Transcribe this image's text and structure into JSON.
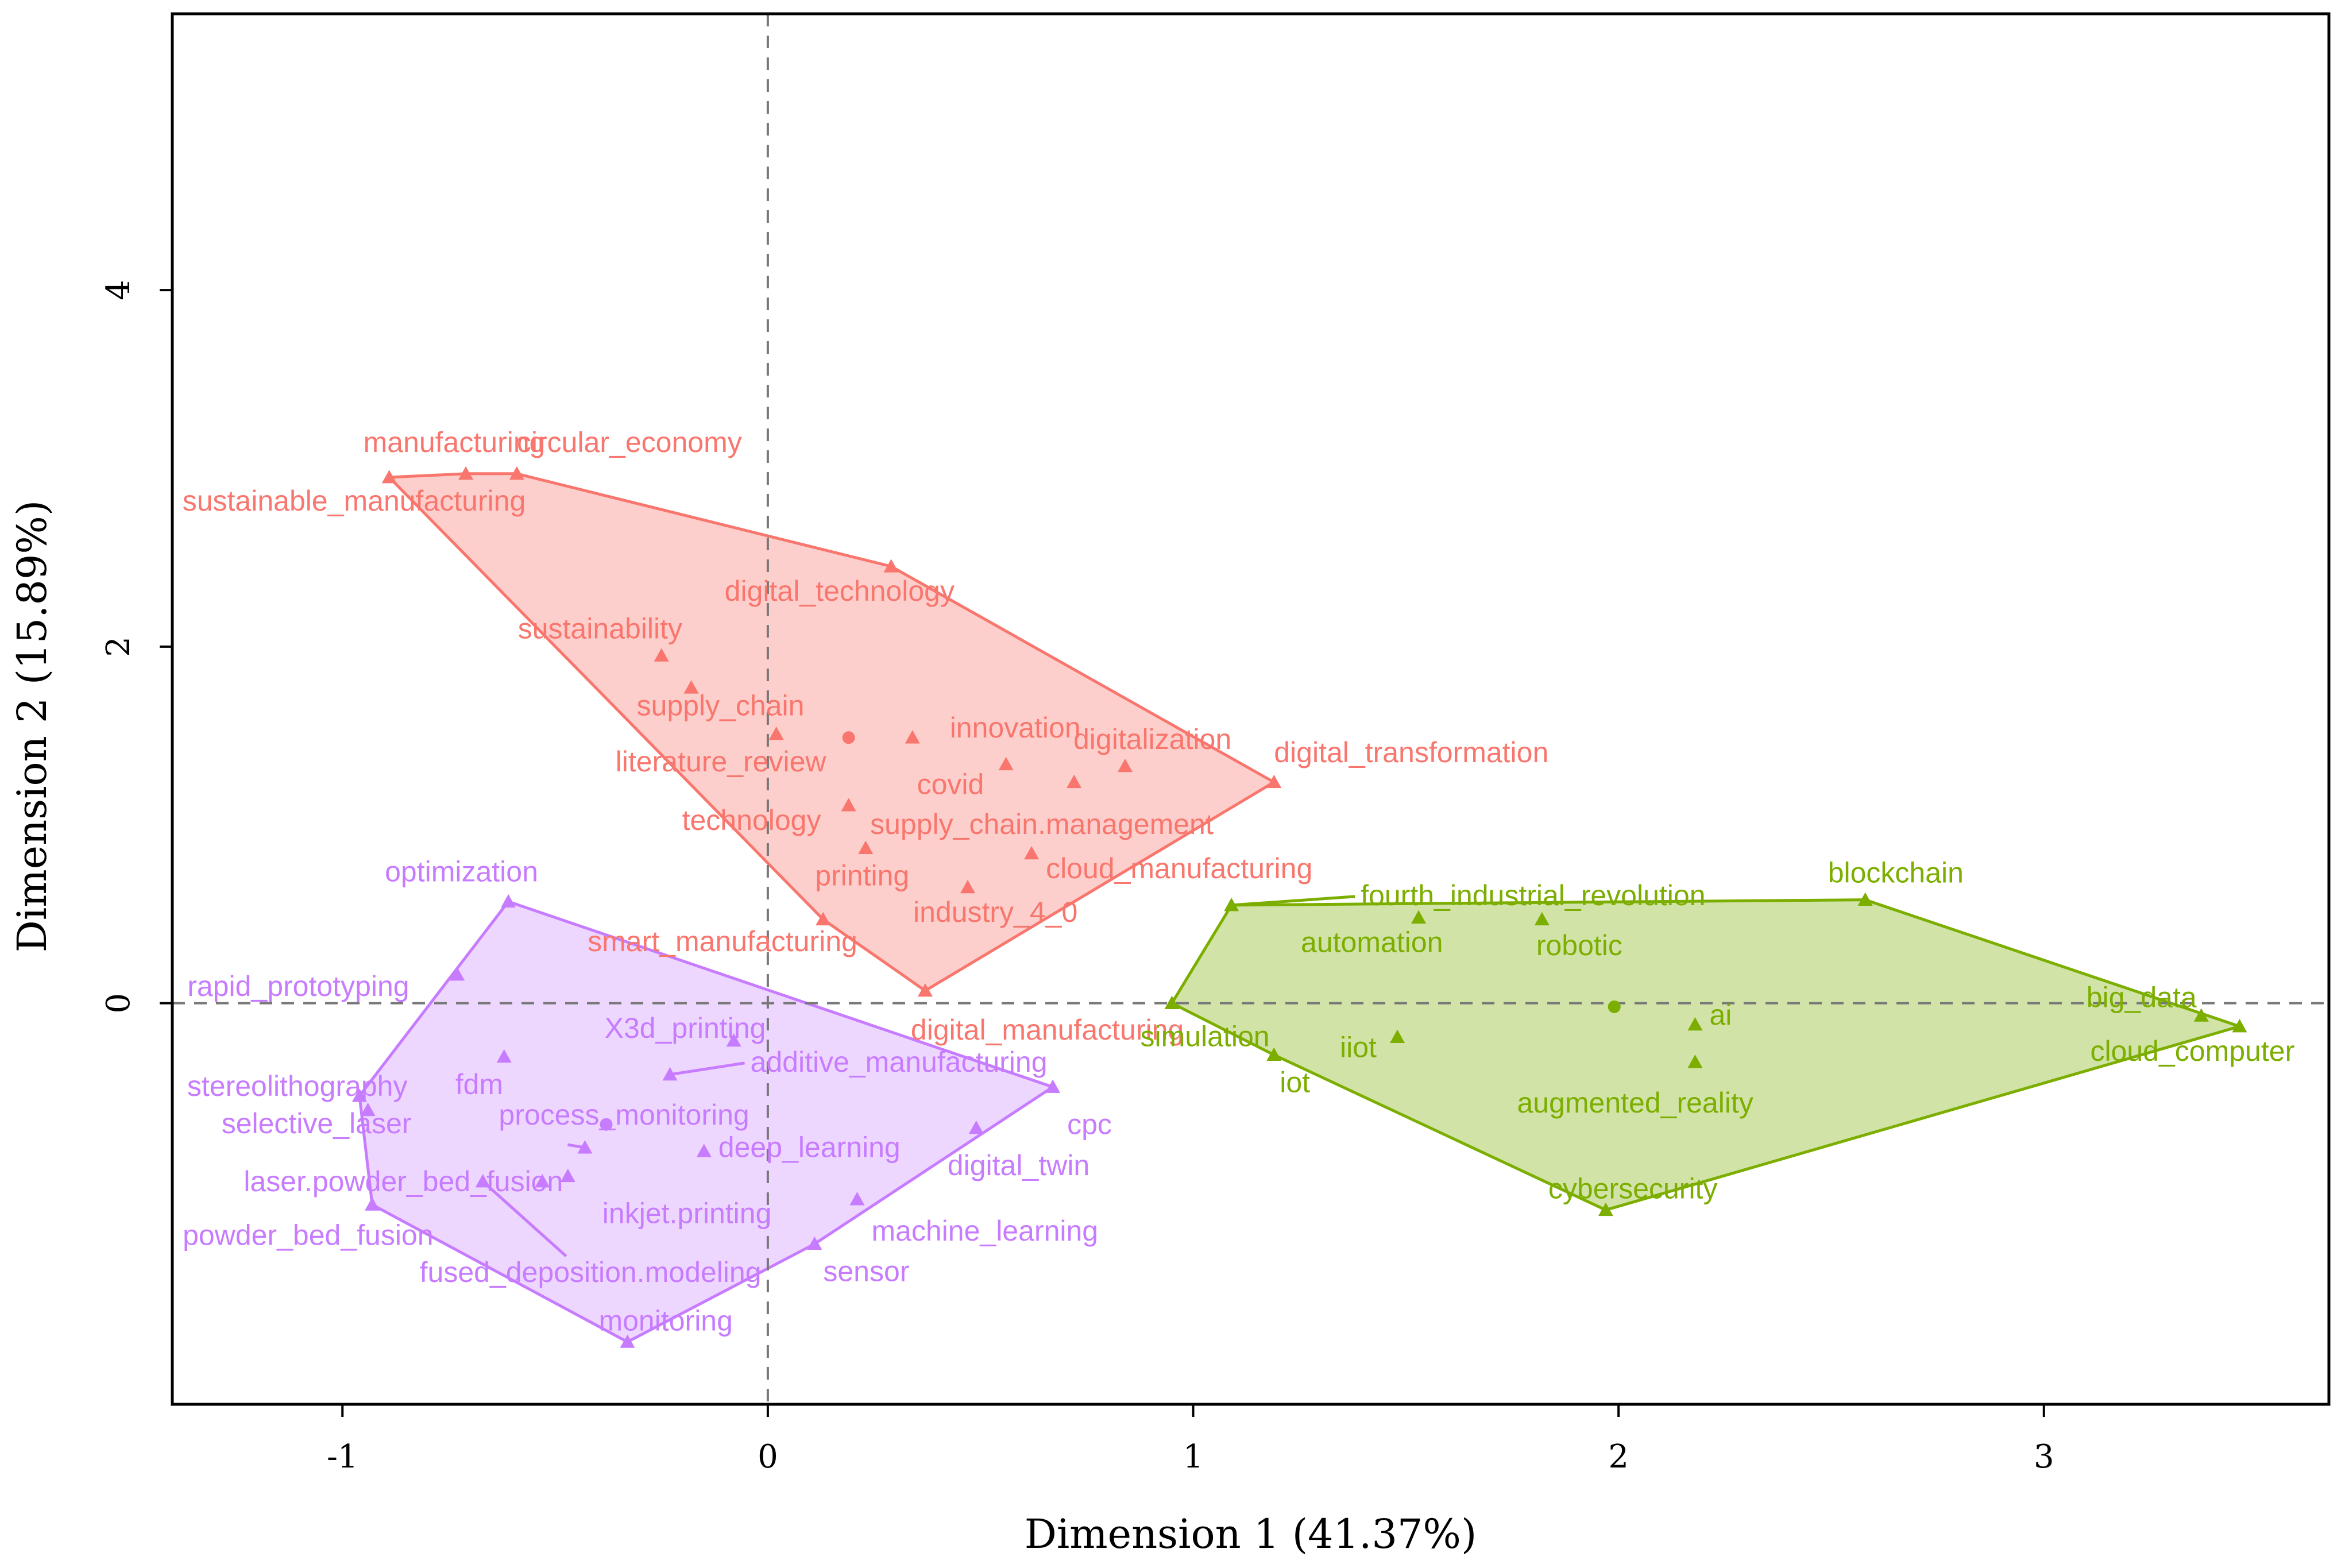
{
  "chart_data": {
    "type": "scatter",
    "title": "",
    "xlabel": "Dimension 1 (41.37%)",
    "ylabel": "Dimension 2 (15.89%)",
    "xlim": [
      -1.4,
      3.67
    ],
    "ylim": [
      -2.25,
      5.55
    ],
    "xticks": [
      -1,
      0,
      1,
      2,
      3
    ],
    "yticks": [
      0,
      2,
      4
    ],
    "grid": false,
    "reference_lines": {
      "x": 0,
      "y": 0,
      "style": "dashed"
    },
    "series": [
      {
        "name": "cluster-red",
        "color": "#f8766d",
        "fill": "rgba(248,118,109,0.35)",
        "centroid": {
          "x": 0.19,
          "y": 1.49
        },
        "points": [
          {
            "label": "manufacturing",
            "x": -0.71,
            "y": 2.97
          },
          {
            "label": "circular_economy",
            "x": -0.59,
            "y": 2.97
          },
          {
            "label": "sustainable_manufacturing",
            "x": -0.89,
            "y": 2.95
          },
          {
            "label": "digital_technology",
            "x": 0.29,
            "y": 2.45
          },
          {
            "label": "sustainability",
            "x": -0.25,
            "y": 1.95
          },
          {
            "label": "supply_chain",
            "x": -0.18,
            "y": 1.77
          },
          {
            "label": "innovation",
            "x": 0.34,
            "y": 1.49
          },
          {
            "label": "literature_review",
            "x": 0.02,
            "y": 1.51
          },
          {
            "label": "covid",
            "x": 0.56,
            "y": 1.34
          },
          {
            "label": "digitalization",
            "x": 0.84,
            "y": 1.33
          },
          {
            "label": "digital_transformation",
            "x": 1.19,
            "y": 1.24
          },
          {
            "label": "supply_chain.management",
            "x": 0.72,
            "y": 1.24
          },
          {
            "label": "technology",
            "x": 0.19,
            "y": 1.11
          },
          {
            "label": "printing",
            "x": 0.23,
            "y": 0.87
          },
          {
            "label": "cloud_manufacturing",
            "x": 0.62,
            "y": 0.84
          },
          {
            "label": "industry_4_0",
            "x": 0.47,
            "y": 0.65
          },
          {
            "label": "smart_manufacturing",
            "x": 0.13,
            "y": 0.47
          },
          {
            "label": "digital_manufacturing",
            "x": 0.37,
            "y": 0.07
          }
        ]
      },
      {
        "name": "cluster-purple",
        "color": "#c77cff",
        "fill": "rgba(199,124,255,0.30)",
        "centroid": {
          "x": -0.38,
          "y": -0.68
        },
        "points": [
          {
            "label": "optimization",
            "x": -0.61,
            "y": 0.57
          },
          {
            "label": "rapid_prototyping",
            "x": -0.73,
            "y": 0.16
          },
          {
            "label": "X3d_printing",
            "x": -0.08,
            "y": -0.21
          },
          {
            "label": "fdm",
            "x": -0.62,
            "y": -0.3
          },
          {
            "label": "additive_manufacturing",
            "x": -0.23,
            "y": -0.4
          },
          {
            "label": "stereolithography",
            "x": -0.96,
            "y": -0.52
          },
          {
            "label": "cpc",
            "x": 0.67,
            "y": -0.47
          },
          {
            "label": "process_monitoring",
            "x": -0.43,
            "y": -0.81
          },
          {
            "label": "selective_laser",
            "x": -0.94,
            "y": -0.6
          },
          {
            "label": "deep_learning",
            "x": -0.15,
            "y": -0.83
          },
          {
            "label": "digital_twin",
            "x": 0.49,
            "y": -0.7
          },
          {
            "label": "laser.powder_bed_fusion",
            "x": -0.53,
            "y": -1.0
          },
          {
            "label": "inkjet.printing",
            "x": -0.47,
            "y": -0.97
          },
          {
            "label": "powder_bed_fusion",
            "x": -0.93,
            "y": -1.13
          },
          {
            "label": "machine_learning",
            "x": 0.21,
            "y": -1.1
          },
          {
            "label": "sensor",
            "x": 0.11,
            "y": -1.35
          },
          {
            "label": "fused_deposition.modeling",
            "x": -0.67,
            "y": -1.0
          },
          {
            "label": "monitoring",
            "x": -0.33,
            "y": -1.9
          }
        ]
      },
      {
        "name": "cluster-green",
        "color": "#7cae00",
        "fill": "rgba(124,174,0,0.35)",
        "centroid": {
          "x": 1.99,
          "y": -0.02
        },
        "points": [
          {
            "label": "blockchain",
            "x": 2.58,
            "y": 0.58
          },
          {
            "label": "fourth_industrial_revolution",
            "x": 1.09,
            "y": 0.55
          },
          {
            "label": "automation",
            "x": 1.53,
            "y": 0.48
          },
          {
            "label": "robotic",
            "x": 1.82,
            "y": 0.47
          },
          {
            "label": "big_data",
            "x": 3.37,
            "y": -0.07
          },
          {
            "label": "ai",
            "x": 2.18,
            "y": -0.12
          },
          {
            "label": "cloud_computer",
            "x": 3.46,
            "y": -0.13
          },
          {
            "label": "simulation",
            "x": 0.95,
            "y": 0.0
          },
          {
            "label": "iiot",
            "x": 1.48,
            "y": -0.19
          },
          {
            "label": "iot",
            "x": 1.19,
            "y": -0.29
          },
          {
            "label": "augmented_reality",
            "x": 2.18,
            "y": -0.33
          },
          {
            "label": "cybersecurity",
            "x": 1.97,
            "y": -1.16
          }
        ]
      }
    ]
  }
}
